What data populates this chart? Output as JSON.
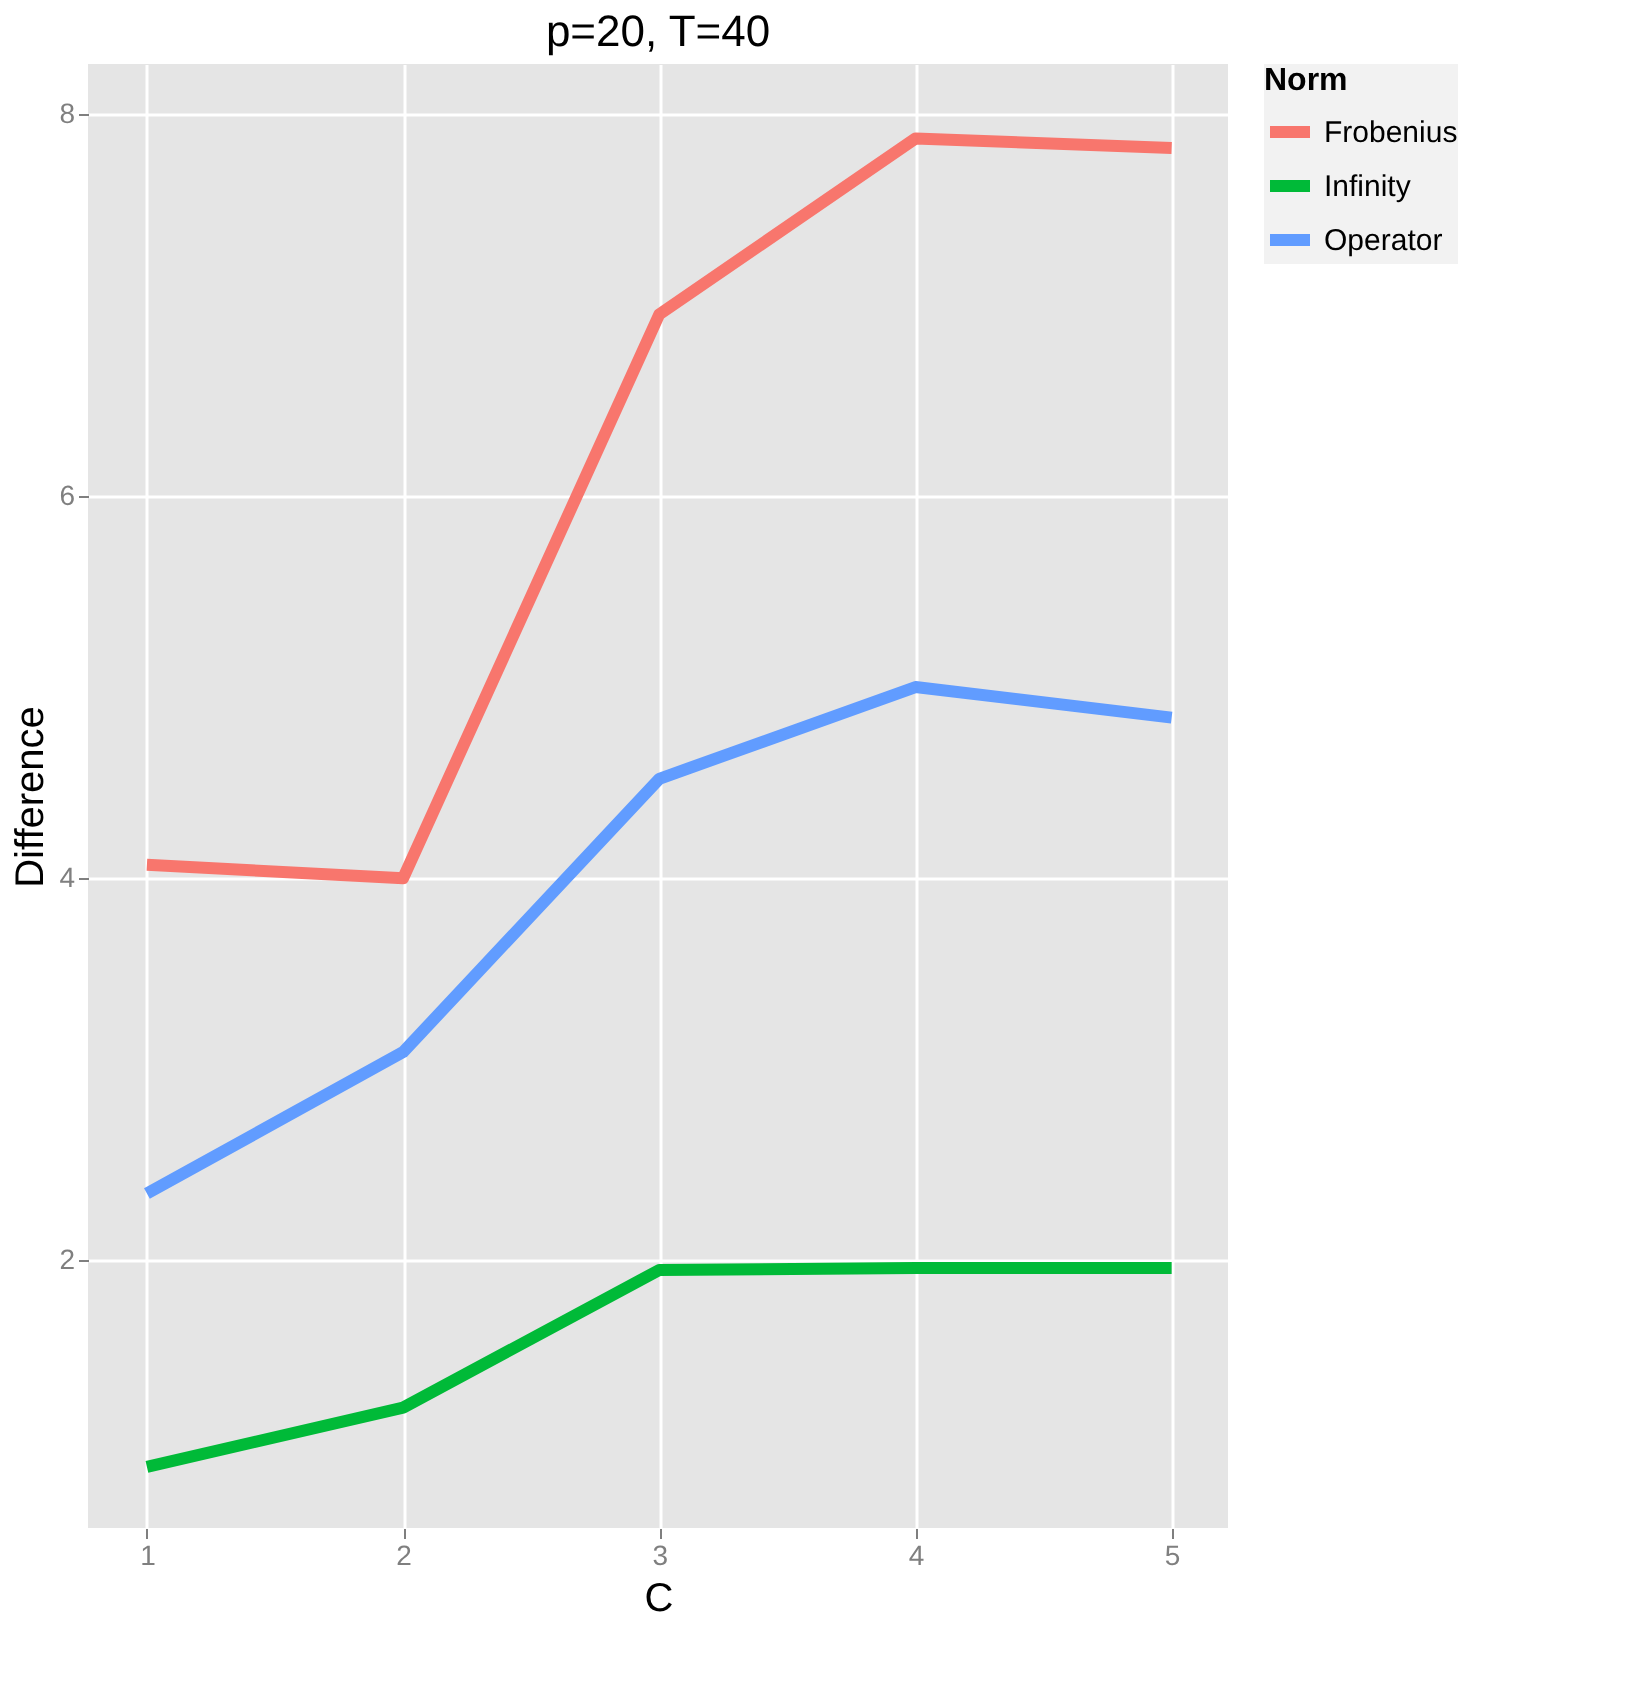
{
  "chart_data": {
    "type": "line",
    "title": "p=20, T=40",
    "xlabel": "C",
    "ylabel": "Difference",
    "legend_title": "Norm",
    "x": [
      1,
      2,
      3,
      4,
      5
    ],
    "series": [
      {
        "name": "Frobenius",
        "color": "#f8766d",
        "values": [
          4.07,
          4.0,
          6.95,
          7.87,
          7.82
        ]
      },
      {
        "name": "Infinity",
        "color": "#00ba38",
        "values": [
          0.92,
          1.23,
          1.95,
          1.96,
          1.96
        ]
      },
      {
        "name": "Operator",
        "color": "#619cff",
        "values": [
          2.35,
          3.09,
          4.52,
          5.0,
          4.84
        ]
      }
    ],
    "xlim": [
      0.77,
      5.22
    ],
    "xticks": [
      1,
      2,
      3,
      4,
      5
    ],
    "ylim": [
      0.6,
      8.26
    ],
    "yticks": [
      2,
      4,
      6,
      8
    ],
    "grid": true,
    "legend": "right",
    "marker": "none",
    "line_style": "solid"
  }
}
